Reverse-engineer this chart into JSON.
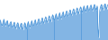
{
  "line_color": "#4d96d9",
  "fill_color": "#4d96d9",
  "background_color": "#ffffff",
  "linewidth": 0.6,
  "figsize": [
    1.2,
    0.45
  ],
  "dpi": 100,
  "values": [
    97.0,
    93.0,
    91.5,
    95.0,
    98.0,
    93.5,
    91.8,
    95.5,
    96.5,
    92.0,
    90.5,
    94.0,
    95.5,
    91.0,
    89.5,
    93.5,
    95.0,
    90.5,
    89.0,
    93.0,
    94.5,
    90.0,
    88.5,
    92.5,
    94.0,
    89.5,
    88.0,
    92.0,
    94.5,
    90.0,
    88.5,
    93.0,
    95.5,
    91.5,
    90.0,
    94.0,
    96.5,
    92.5,
    91.0,
    95.0,
    97.5,
    93.5,
    92.0,
    96.0,
    98.5,
    94.5,
    93.0,
    97.0,
    99.5,
    95.5,
    94.0,
    98.0,
    100.5,
    96.5,
    95.0,
    99.0,
    101.5,
    97.5,
    96.0,
    100.0,
    102.5,
    98.5,
    97.0,
    101.0,
    103.5,
    99.5,
    98.0,
    102.0,
    104.5,
    100.5,
    99.0,
    103.0,
    105.5,
    101.5,
    100.0,
    104.0,
    106.5,
    102.5,
    101.0,
    105.0,
    107.5,
    103.5,
    102.0,
    106.0,
    108.5,
    104.5,
    103.0,
    107.0,
    109.5,
    105.5,
    104.0,
    108.0,
    110.5,
    106.5,
    105.0,
    109.0,
    111.5,
    107.5,
    106.0,
    110.0,
    112.0,
    108.0,
    106.5,
    110.5,
    112.5,
    108.5,
    107.0,
    111.0,
    113.0,
    109.0,
    107.5,
    111.5,
    88.0,
    80.0,
    107.0,
    111.0,
    113.0,
    109.5,
    108.0,
    112.0,
    113.5,
    110.0,
    108.5,
    112.5
  ]
}
